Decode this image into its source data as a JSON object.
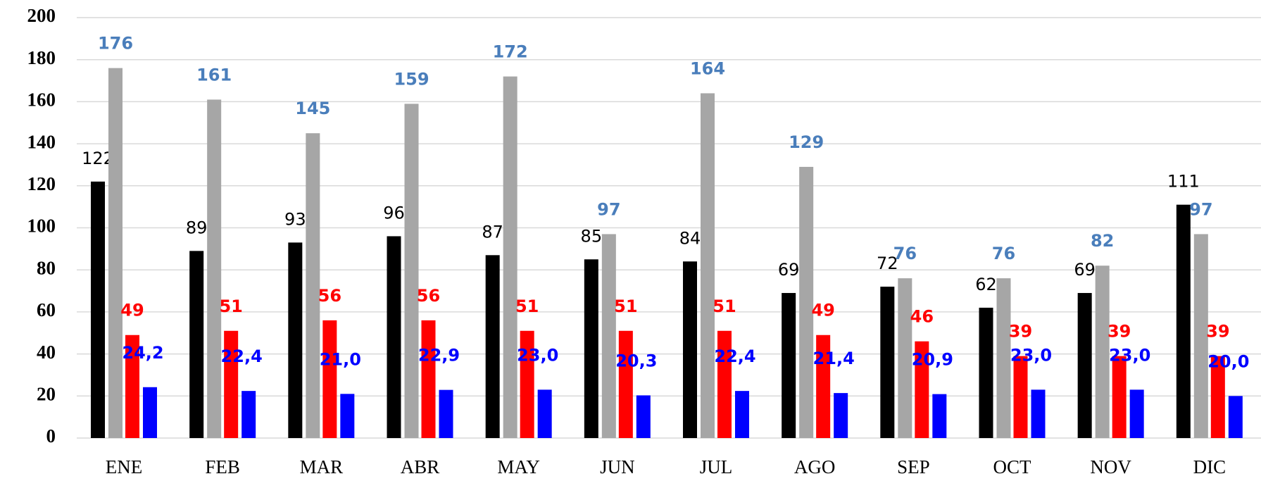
{
  "chart_data": {
    "type": "bar",
    "categories": [
      "ENE",
      "FEB",
      "MAR",
      "ABR",
      "MAY",
      "JUN",
      "JUL",
      "AGO",
      "SEP",
      "OCT",
      "NOV",
      "DIC"
    ],
    "series": [
      {
        "color": "#000000",
        "label_color": "#000000",
        "values": [
          122,
          89,
          93,
          96,
          87,
          85,
          84,
          69,
          72,
          62,
          69,
          111
        ]
      },
      {
        "color": "#a6a6a6",
        "label_color": "#4a7ebb",
        "values": [
          176,
          161,
          145,
          159,
          172,
          97,
          164,
          129,
          76,
          76,
          82,
          97
        ]
      },
      {
        "color": "#ff0000",
        "label_color": "#ff0000",
        "values": [
          49,
          51,
          56,
          56,
          51,
          51,
          51,
          49,
          46,
          39,
          39,
          39
        ]
      },
      {
        "color": "#0000ff",
        "label_color": "#0000ff",
        "values": [
          24.2,
          22.4,
          21.0,
          22.9,
          23.0,
          20.3,
          22.4,
          21.4,
          20.9,
          23.0,
          23.0,
          20.0
        ],
        "value_labels": [
          "24,2",
          "22,4",
          "21,0",
          "22,9",
          "23,0",
          "20,3",
          "22,4",
          "21,4",
          "20,9",
          "23,0",
          "23,0",
          "20,0"
        ]
      }
    ],
    "ylim": [
      0,
      200
    ],
    "yticks": [
      0,
      20,
      40,
      60,
      80,
      100,
      120,
      140,
      160,
      180,
      200
    ],
    "grid": true
  }
}
